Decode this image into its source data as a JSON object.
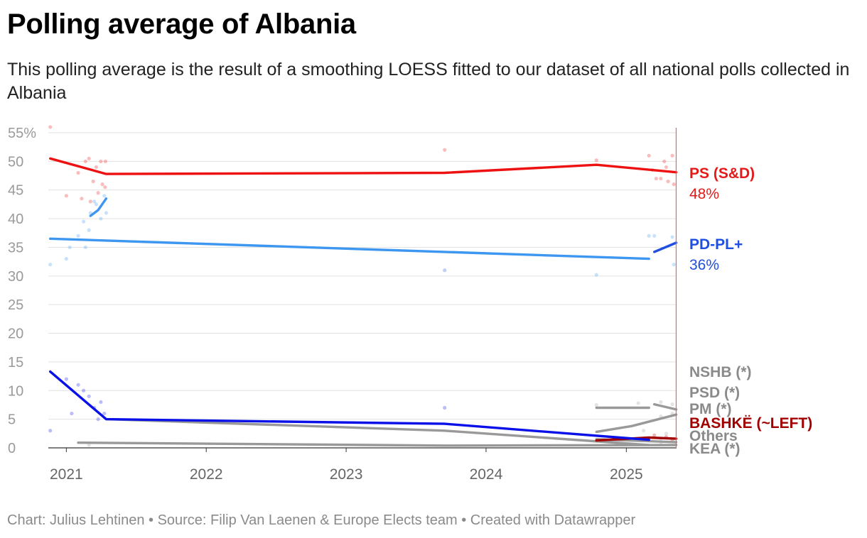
{
  "title": "Polling average of Albania",
  "subtitle": "This polling average is the result of a smoothing LOESS fitted to our dataset of all national polls collected in Albania",
  "footer": "Chart: Julius Lehtinen • Source: Filip Van Laenen & Europe Elects team • Created with Datawrapper",
  "chart_data": {
    "type": "line",
    "x_range": [
      "2020-11-15",
      "2025-05-12"
    ],
    "ylim": [
      0,
      55
    ],
    "y_ticks": [
      0,
      5,
      10,
      15,
      20,
      25,
      30,
      35,
      40,
      45,
      50,
      55
    ],
    "y_tick_labels": [
      "0",
      "5",
      "10",
      "15",
      "20",
      "25",
      "30",
      "35",
      "40",
      "45",
      "50",
      "55%"
    ],
    "x_ticks": [
      "2021-01-01",
      "2022-01-01",
      "2023-01-01",
      "2024-01-01",
      "2025-01-01"
    ],
    "x_tick_labels": [
      "2021",
      "2022",
      "2023",
      "2024",
      "2025"
    ],
    "grid": true,
    "reference_line": "2025-05-11",
    "series": [
      {
        "name": "PS (S&D)",
        "value_label": "48%",
        "color": "#ee1111",
        "label_color": "#e41a1a",
        "segments": [
          [
            [
              "2020-11-20",
              50.5
            ],
            [
              "2021-04-15",
              47.8
            ],
            [
              "2023-09-15",
              48.0
            ],
            [
              "2024-10-15",
              49.4
            ],
            [
              "2025-05-11",
              48.1
            ]
          ]
        ],
        "points": [
          [
            "2020-11-20",
            56
          ],
          [
            "2021-01-01",
            44
          ],
          [
            "2021-02-01",
            48
          ],
          [
            "2021-02-10",
            43.5
          ],
          [
            "2021-02-20",
            50
          ],
          [
            "2021-03-01",
            50.5
          ],
          [
            "2021-03-05",
            43
          ],
          [
            "2021-03-12",
            46.5
          ],
          [
            "2021-03-20",
            49
          ],
          [
            "2021-03-25",
            44.5
          ],
          [
            "2021-04-01",
            50
          ],
          [
            "2021-04-05",
            46
          ],
          [
            "2021-04-12",
            45.5
          ],
          [
            "2021-04-13",
            50
          ],
          [
            "2023-09-15",
            52
          ],
          [
            "2024-10-15",
            50.2
          ],
          [
            "2025-03-01",
            51
          ],
          [
            "2025-03-10",
            48.5
          ],
          [
            "2025-03-20",
            47
          ],
          [
            "2025-04-01",
            47
          ],
          [
            "2025-04-10",
            50
          ],
          [
            "2025-04-15",
            49
          ],
          [
            "2025-04-20",
            46.5
          ],
          [
            "2025-05-01",
            51
          ],
          [
            "2025-05-05",
            46
          ]
        ]
      },
      {
        "name": "PD-PL+",
        "value_label": "36%",
        "color": "#3d96f0",
        "label_color": "#1f4fe0",
        "segments": [
          [
            [
              "2020-11-20",
              36.5
            ],
            [
              "2025-03-01",
              33.0
            ]
          ],
          [
            [
              "2021-03-05",
              40.5
            ],
            [
              "2021-03-25",
              41.5
            ],
            [
              "2021-04-15",
              43.5
            ]
          ]
        ],
        "points": [
          [
            "2020-11-20",
            32
          ],
          [
            "2021-01-01",
            33
          ],
          [
            "2021-01-10",
            35
          ],
          [
            "2021-02-01",
            37
          ],
          [
            "2021-02-15",
            39.5
          ],
          [
            "2021-02-20",
            35
          ],
          [
            "2021-03-01",
            38
          ],
          [
            "2021-03-05",
            41
          ],
          [
            "2021-03-15",
            43
          ],
          [
            "2021-03-20",
            42.5
          ],
          [
            "2021-04-01",
            40
          ],
          [
            "2021-04-10",
            44
          ],
          [
            "2021-04-15",
            41
          ],
          [
            "2024-10-15",
            30.2
          ],
          [
            "2025-03-01",
            37
          ],
          [
            "2025-03-15",
            37
          ],
          [
            "2025-05-01",
            36.8
          ],
          [
            "2025-05-05",
            32
          ]
        ]
      },
      {
        "name": "PD-PL+",
        "value_label": "",
        "color": "#1f4fe0",
        "label_color": "#1f4fe0",
        "segments": [
          [
            [
              "2025-03-15",
              34.2
            ],
            [
              "2025-05-11",
              35.8
            ]
          ]
        ],
        "points": [
          [
            "2023-09-15",
            31
          ]
        ]
      },
      {
        "name": "",
        "value_label": "",
        "color": "#0a10e8",
        "label_color": "#0a10e8",
        "segments": [
          [
            [
              "2020-11-20",
              13.3
            ],
            [
              "2021-04-15",
              5.0
            ],
            [
              "2023-09-15",
              4.2
            ],
            [
              "2025-03-01",
              1.4
            ]
          ]
        ],
        "points": [
          [
            "2020-11-20",
            3
          ],
          [
            "2021-01-01",
            12
          ],
          [
            "2021-01-15",
            6
          ],
          [
            "2021-02-01",
            11
          ],
          [
            "2021-02-15",
            10
          ],
          [
            "2021-03-01",
            9
          ],
          [
            "2021-03-15",
            7
          ],
          [
            "2021-03-25",
            5
          ],
          [
            "2021-04-01",
            8
          ],
          [
            "2021-04-10",
            6
          ],
          [
            "2023-09-15",
            7
          ]
        ]
      },
      {
        "name": "NSHB (*)",
        "value_label": "",
        "color": "#999999",
        "label_color": "#8a8a8a",
        "segments": [
          [
            [
              "2024-10-15",
              7.0
            ],
            [
              "2025-03-01",
              7.0
            ]
          ],
          [
            [
              "2025-03-15",
              7.6
            ],
            [
              "2025-05-11",
              6.7
            ]
          ]
        ],
        "points": [
          [
            "2024-10-15",
            7.5
          ],
          [
            "2025-02-01",
            7.8
          ],
          [
            "2025-04-01",
            8
          ],
          [
            "2025-05-01",
            7.6
          ]
        ]
      },
      {
        "name": "PSD (*)",
        "value_label": "",
        "color": "#999999",
        "label_color": "#8a8a8a",
        "segments": [
          [
            [
              "2021-04-15",
              5.0
            ],
            [
              "2023-09-15",
              3.0
            ],
            [
              "2025-03-01",
              0.5
            ]
          ]
        ],
        "points": [
          [
            "2025-02-15",
            3
          ],
          [
            "2025-04-15",
            2.5
          ]
        ]
      },
      {
        "name": "PM (*)",
        "value_label": "",
        "color": "#999999",
        "label_color": "#8a8a8a",
        "segments": [
          [
            [
              "2024-10-15",
              2.8
            ],
            [
              "2025-01-15",
              3.8
            ],
            [
              "2025-05-11",
              5.8
            ]
          ]
        ],
        "points": [
          [
            "2025-04-01",
            5.5
          ],
          [
            "2025-05-01",
            6
          ]
        ]
      },
      {
        "name": "BASHKË (~LEFT)",
        "value_label": "",
        "color": "#a00000",
        "label_color": "#a00000",
        "segments": [
          [
            [
              "2024-10-15",
              1.3
            ],
            [
              "2025-03-01",
              1.8
            ],
            [
              "2025-05-11",
              1.6
            ]
          ]
        ],
        "points": [
          [
            "2025-03-15",
            2.2
          ],
          [
            "2025-04-15",
            1.9
          ],
          [
            "2025-05-01",
            1.4
          ]
        ]
      },
      {
        "name": "Others",
        "value_label": "",
        "color": "#999999",
        "label_color": "#8a8a8a",
        "segments": [
          [
            [
              "2024-10-15",
              1.5
            ],
            [
              "2025-05-11",
              1.0
            ]
          ]
        ],
        "points": [
          [
            "2025-04-01",
            1.2
          ]
        ]
      },
      {
        "name": "KEA (*)",
        "value_label": "",
        "color": "#999999",
        "label_color": "#8a8a8a",
        "segments": [
          [
            [
              "2021-02-01",
              0.9
            ],
            [
              "2023-09-15",
              0.4
            ],
            [
              "2025-05-11",
              0.5
            ]
          ]
        ],
        "points": [
          [
            "2021-03-01",
            0.5
          ],
          [
            "2025-04-01",
            0.6
          ]
        ]
      }
    ]
  }
}
